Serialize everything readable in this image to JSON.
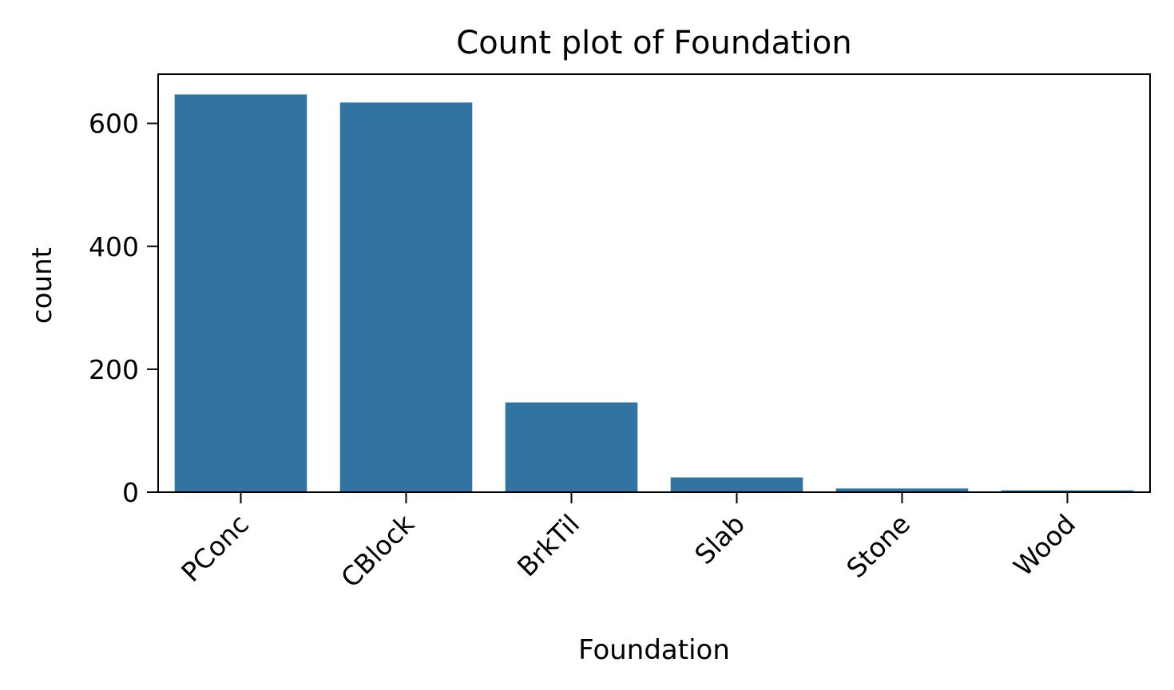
{
  "chart_data": {
    "type": "bar",
    "title": "Count plot of Foundation",
    "xlabel": "Foundation",
    "ylabel": "count",
    "categories": [
      "PConc",
      "CBlock",
      "BrkTil",
      "Slab",
      "Stone",
      "Wood"
    ],
    "values": [
      647,
      634,
      146,
      24,
      6,
      3
    ],
    "ylim": [
      0,
      680
    ],
    "yticks": [
      0,
      200,
      400,
      600
    ],
    "bar_color": "#3274a1",
    "grid": false,
    "legend": "none"
  }
}
